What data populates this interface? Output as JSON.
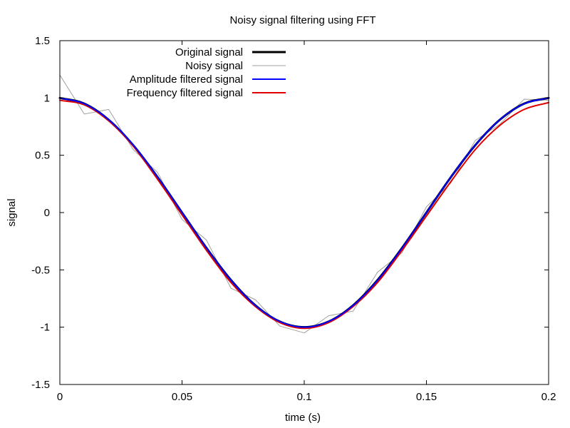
{
  "chart_data": {
    "type": "line",
    "title": "Noisy signal filtering using FFT",
    "xlabel": "time (s)",
    "ylabel": "signal",
    "xlim": [
      0,
      0.2
    ],
    "ylim": [
      -1.5,
      1.5
    ],
    "xticks": [
      0,
      0.05,
      0.1,
      0.15,
      0.2
    ],
    "xtick_labels": [
      "0",
      "0.05",
      "0.1",
      "0.15",
      "0.2"
    ],
    "yticks": [
      -1.5,
      -1,
      -0.5,
      0,
      0.5,
      1,
      1.5
    ],
    "ytick_labels": [
      "-1.5",
      "-1",
      "-0.5",
      "0",
      "0.5",
      "1",
      "1.5"
    ],
    "grid": false,
    "legend_position": "top-left",
    "x": [
      0,
      0.01,
      0.02,
      0.03,
      0.04,
      0.05,
      0.06,
      0.07,
      0.08,
      0.09,
      0.1,
      0.11,
      0.12,
      0.13,
      0.14,
      0.15,
      0.16,
      0.17,
      0.18,
      0.19,
      0.2
    ],
    "series": [
      {
        "name": "Original signal",
        "color": "#000000",
        "line_width": 3,
        "values": [
          1.0,
          0.951,
          0.809,
          0.588,
          0.309,
          0.0,
          -0.309,
          -0.588,
          -0.809,
          -0.951,
          -1.0,
          -0.951,
          -0.809,
          -0.588,
          -0.309,
          0.0,
          0.309,
          0.588,
          0.809,
          0.951,
          1.0
        ]
      },
      {
        "name": "Noisy signal",
        "color": "#a0a0a0",
        "line_width": 1,
        "values": [
          1.2,
          0.86,
          0.9,
          0.55,
          0.35,
          -0.06,
          -0.24,
          -0.66,
          -0.76,
          -0.99,
          -1.05,
          -0.9,
          -0.86,
          -0.52,
          -0.35,
          0.05,
          0.26,
          0.63,
          0.77,
          0.99,
          0.98
        ]
      },
      {
        "name": "Amplitude filtered signal",
        "color": "#0000ff",
        "line_width": 2,
        "values": [
          1.0,
          0.95,
          0.81,
          0.59,
          0.31,
          0.0,
          -0.31,
          -0.59,
          -0.81,
          -0.95,
          -1.0,
          -0.95,
          -0.81,
          -0.59,
          -0.31,
          0.0,
          0.31,
          0.59,
          0.81,
          0.95,
          1.0
        ]
      },
      {
        "name": "Frequency filtered signal",
        "color": "#e00000",
        "line_width": 2,
        "values": [
          0.98,
          0.94,
          0.8,
          0.58,
          0.29,
          -0.02,
          -0.33,
          -0.61,
          -0.82,
          -0.96,
          -1.01,
          -0.96,
          -0.82,
          -0.61,
          -0.33,
          -0.03,
          0.27,
          0.55,
          0.76,
          0.9,
          0.96
        ]
      }
    ]
  }
}
